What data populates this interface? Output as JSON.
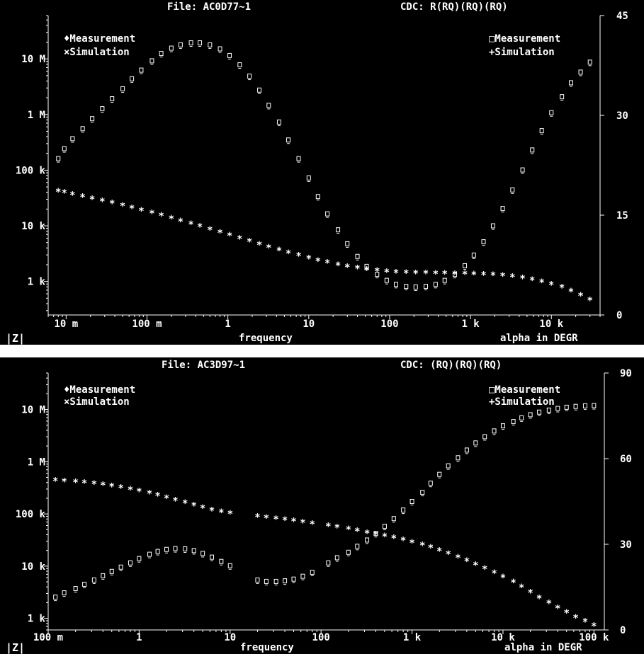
{
  "chart_data": [
    {
      "type": "scatter",
      "title_left": "File:  AC0D77~1",
      "title_right": "CDC:  R(RQ)(RQ)(RQ)",
      "xlabel": "frequency",
      "ylabel_left": "|Z|",
      "ylabel_right": "alpha in DEGR",
      "x_scale": "log",
      "y_scale": "log",
      "xlim": [
        0.006,
        40000
      ],
      "ylim": [
        250,
        60000000
      ],
      "y2lim": [
        0,
        45
      ],
      "x_ticks": [
        {
          "value": 0.01,
          "label": "10 m"
        },
        {
          "value": 0.1,
          "label": "100 m"
        },
        {
          "value": 1,
          "label": "1"
        },
        {
          "value": 10,
          "label": "10"
        },
        {
          "value": 100,
          "label": "100"
        },
        {
          "value": 1000,
          "label": "1 k"
        },
        {
          "value": 10000,
          "label": "10 k"
        }
      ],
      "y_ticks": [
        {
          "value": 1000,
          "label": "1 k"
        },
        {
          "value": 10000,
          "label": "10 k"
        },
        {
          "value": 100000,
          "label": "100 k"
        },
        {
          "value": 1000000,
          "label": "1 M"
        },
        {
          "value": 10000000,
          "label": "10 M"
        }
      ],
      "y2_ticks": [
        {
          "value": 0,
          "label": "0"
        },
        {
          "value": 15,
          "label": "15"
        },
        {
          "value": 30,
          "label": "30"
        },
        {
          "value": 45,
          "label": "45"
        }
      ],
      "legend_left": [
        "♦Measurement",
        "×Simulation"
      ],
      "legend_right": [
        "□Measurement",
        "+Simulation"
      ],
      "x": [
        0.008,
        0.0095,
        0.012,
        0.016,
        0.021,
        0.028,
        0.037,
        0.05,
        0.065,
        0.085,
        0.115,
        0.15,
        0.2,
        0.26,
        0.35,
        0.45,
        0.6,
        0.8,
        1.05,
        1.4,
        1.85,
        2.45,
        3.2,
        4.3,
        5.6,
        7.5,
        10,
        13,
        17,
        23,
        30,
        40,
        52,
        70,
        92,
        120,
        160,
        210,
        280,
        370,
        480,
        640,
        850,
        1100,
        1450,
        1900,
        2500,
        3300,
        4400,
        5800,
        7600,
        10000,
        13500,
        17500,
        23000,
        30000
      ],
      "series": [
        {
          "name": "Measurement",
          "axis": "left",
          "marker": "star",
          "values": [
            42000,
            40000,
            37000,
            34000,
            31000,
            28500,
            26000,
            23500,
            21000,
            19000,
            17200,
            15500,
            13800,
            12300,
            11000,
            9800,
            8700,
            7700,
            6800,
            6000,
            5300,
            4700,
            4150,
            3700,
            3300,
            2950,
            2650,
            2400,
            2200,
            2000,
            1850,
            1750,
            1650,
            1580,
            1520,
            1480,
            1450,
            1430,
            1420,
            1410,
            1400,
            1390,
            1380,
            1370,
            1350,
            1320,
            1280,
            1230,
            1160,
            1080,
            990,
            890,
            790,
            680,
            570,
            470
          ]
        },
        {
          "name": "Simulation",
          "axis": "right",
          "marker": "square",
          "values": [
            23.5,
            25.0,
            26.5,
            28.0,
            29.5,
            31.0,
            32.5,
            34.0,
            35.5,
            36.8,
            38.2,
            39.3,
            40.1,
            40.6,
            40.9,
            40.9,
            40.6,
            40.0,
            39.0,
            37.6,
            35.9,
            33.8,
            31.5,
            29.0,
            26.3,
            23.5,
            20.6,
            17.8,
            15.2,
            12.8,
            10.7,
            8.8,
            7.3,
            6.1,
            5.2,
            4.6,
            4.3,
            4.2,
            4.3,
            4.6,
            5.2,
            6.1,
            7.4,
            9.0,
            11.0,
            13.4,
            16.0,
            18.8,
            21.8,
            24.8,
            27.7,
            30.4,
            32.8,
            34.9,
            36.5,
            38.0
          ]
        }
      ]
    },
    {
      "type": "scatter",
      "title_left": "File:  AC3D97~1",
      "title_right": "CDC:  (RQ)(RQ)(RQ)",
      "xlabel": "frequency",
      "ylabel_left": "|Z|",
      "ylabel_right": "alpha in DEGR",
      "x_scale": "log",
      "y_scale": "log",
      "xlim": [
        0.1,
        130000
      ],
      "ylim": [
        600,
        50000000
      ],
      "y2lim": [
        0,
        90
      ],
      "x_ticks": [
        {
          "value": 0.1,
          "label": "100 m"
        },
        {
          "value": 1,
          "label": "1"
        },
        {
          "value": 10,
          "label": "10"
        },
        {
          "value": 100,
          "label": "100"
        },
        {
          "value": 1000,
          "label": "1 k"
        },
        {
          "value": 10000,
          "label": "10 k"
        },
        {
          "value": 100000,
          "label": "100 k"
        }
      ],
      "y_ticks": [
        {
          "value": 1000,
          "label": "1 k"
        },
        {
          "value": 10000,
          "label": "10 k"
        },
        {
          "value": 100000,
          "label": "100 k"
        },
        {
          "value": 1000000,
          "label": "1 M"
        },
        {
          "value": 10000000,
          "label": "10 M"
        }
      ],
      "y2_ticks": [
        {
          "value": 0,
          "label": "0"
        },
        {
          "value": 30,
          "label": "30"
        },
        {
          "value": 60,
          "label": "60"
        },
        {
          "value": 90,
          "label": "90"
        }
      ],
      "legend_left": [
        "♦Measurement",
        "×Simulation"
      ],
      "legend_right": [
        "□Measurement",
        "+Simulation"
      ],
      "x": [
        0.12,
        0.15,
        0.2,
        0.25,
        0.32,
        0.4,
        0.5,
        0.63,
        0.8,
        1.0,
        1.3,
        1.6,
        2.0,
        2.5,
        3.2,
        4.0,
        5.0,
        6.3,
        8.0,
        10.0,
        20,
        25,
        32,
        40,
        50,
        63,
        80,
        120,
        150,
        200,
        250,
        320,
        400,
        500,
        630,
        800,
        1000,
        1300,
        1600,
        2000,
        2500,
        3200,
        4000,
        5000,
        6300,
        8000,
        10000,
        13000,
        16000,
        20000,
        25000,
        32000,
        40000,
        50000,
        63000,
        80000,
        100000
      ],
      "series": [
        {
          "name": "Measurement",
          "axis": "left",
          "marker": "star",
          "values": [
            440000,
            430000,
            415000,
            400000,
            385000,
            365000,
            345000,
            325000,
            300000,
            275000,
            250000,
            228000,
            205000,
            185000,
            165000,
            148000,
            133000,
            120000,
            110000,
            103000,
            90000,
            86000,
            82000,
            78000,
            74000,
            70000,
            66000,
            60000,
            56000,
            52000,
            48000,
            44000,
            41000,
            38000,
            35000,
            32000,
            29000,
            26000,
            23000,
            20000,
            17500,
            15000,
            12800,
            10800,
            9000,
            7500,
            6200,
            5000,
            4000,
            3200,
            2500,
            2000,
            1600,
            1300,
            1050,
            880,
            740
          ]
        },
        {
          "name": "Simulation",
          "axis": "right",
          "marker": "square",
          "values": [
            11.5,
            13.0,
            14.5,
            16.0,
            17.5,
            19.0,
            20.5,
            22.0,
            23.5,
            25.0,
            26.5,
            27.5,
            28.2,
            28.5,
            28.4,
            27.8,
            26.8,
            25.5,
            24.0,
            22.5,
            17.5,
            17.0,
            17.0,
            17.2,
            17.8,
            18.8,
            20.2,
            23.5,
            25.3,
            27.2,
            29.3,
            31.5,
            33.8,
            36.3,
            39.0,
            42.0,
            45.0,
            48.2,
            51.4,
            54.5,
            57.5,
            60.3,
            63.0,
            65.5,
            67.7,
            69.7,
            71.5,
            73.0,
            74.3,
            75.4,
            76.3,
            77.0,
            77.6,
            78.0,
            78.3,
            78.5,
            78.6
          ]
        }
      ]
    }
  ]
}
